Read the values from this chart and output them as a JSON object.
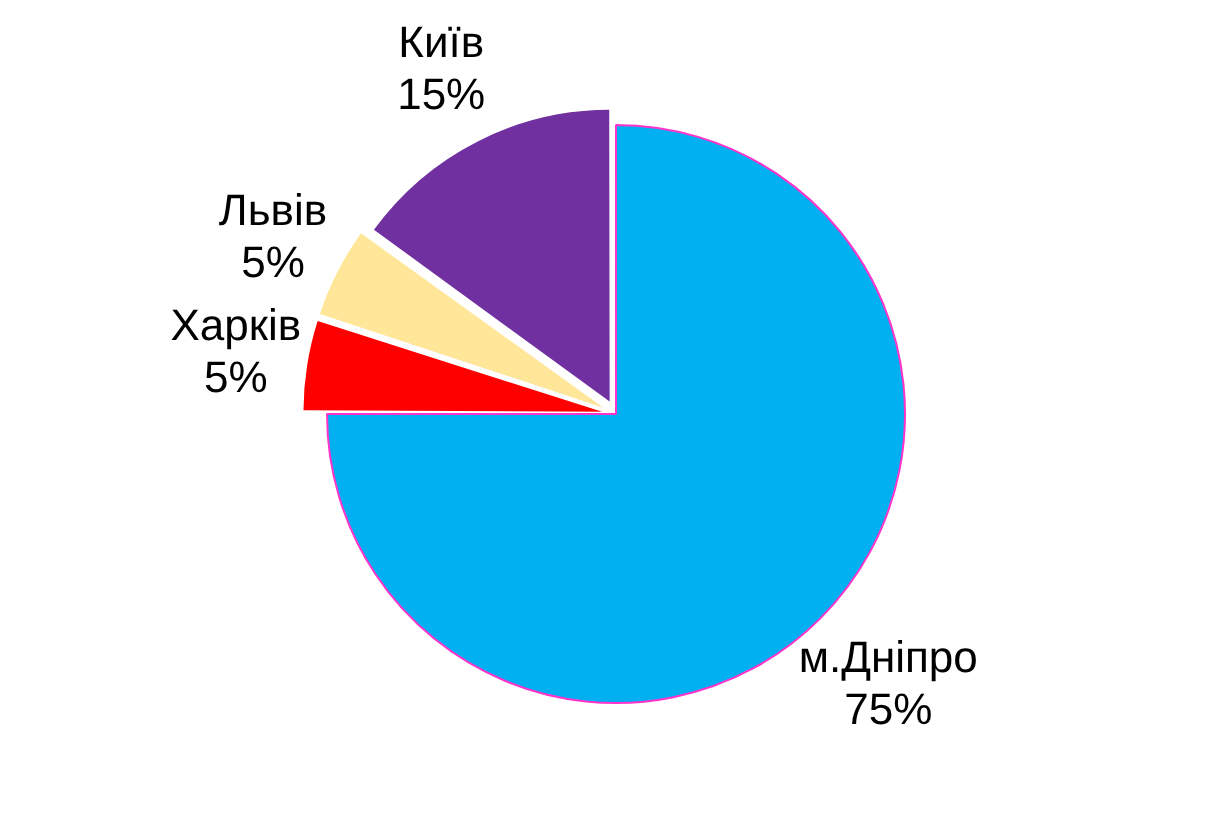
{
  "chart_data": {
    "type": "pie",
    "categories": [
      "м.Дніпро",
      "Харків",
      "Львів",
      "Київ"
    ],
    "values": [
      75,
      5,
      5,
      15
    ],
    "colors": [
      "#00b0f0",
      "#ff0000",
      "#ffe699",
      "#7030a0"
    ],
    "value_labels": [
      "75%",
      "5%",
      "5%",
      "15%"
    ],
    "legend": false
  }
}
